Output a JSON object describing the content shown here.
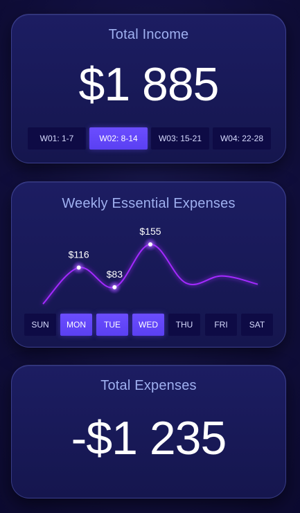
{
  "income": {
    "title": "Total Income",
    "value": "$1 885",
    "weeks": [
      {
        "label": "W01: 1-7",
        "active": false
      },
      {
        "label": "W02: 8-14",
        "active": true
      },
      {
        "label": "W03: 15-21",
        "active": false
      },
      {
        "label": "W04: 22-28",
        "active": false
      }
    ]
  },
  "weekly": {
    "title": "Weekly Essential Expenses",
    "days": [
      {
        "label": "SUN",
        "active": false
      },
      {
        "label": "MON",
        "active": true
      },
      {
        "label": "TUE",
        "active": true
      },
      {
        "label": "WED",
        "active": true
      },
      {
        "label": "THU",
        "active": false
      },
      {
        "label": "FRI",
        "active": false
      },
      {
        "label": "SAT",
        "active": false
      }
    ],
    "point_labels": [
      "$116",
      "$83",
      "$155"
    ]
  },
  "chart_data": {
    "type": "line",
    "categories": [
      "SUN",
      "MON",
      "TUE",
      "WED",
      "THU",
      "FRI",
      "SAT"
    ],
    "values": [
      55,
      116,
      83,
      155,
      90,
      102,
      88
    ],
    "labeled_points": [
      {
        "category": "MON",
        "label": "$116"
      },
      {
        "category": "TUE",
        "label": "$83"
      },
      {
        "category": "WED",
        "label": "$155"
      }
    ],
    "title": "Weekly Essential Expenses",
    "xlabel": "",
    "ylabel": "",
    "grid": false,
    "line_color": "#a32cff"
  },
  "expenses": {
    "title": "Total Expenses",
    "value": "-$1 235"
  },
  "colors": {
    "accent": "#6b4dff",
    "line": "#a32cff",
    "title_text": "#9fb0f0",
    "card_bg": "#1c1d62",
    "tab_bg": "#0e0b45"
  }
}
